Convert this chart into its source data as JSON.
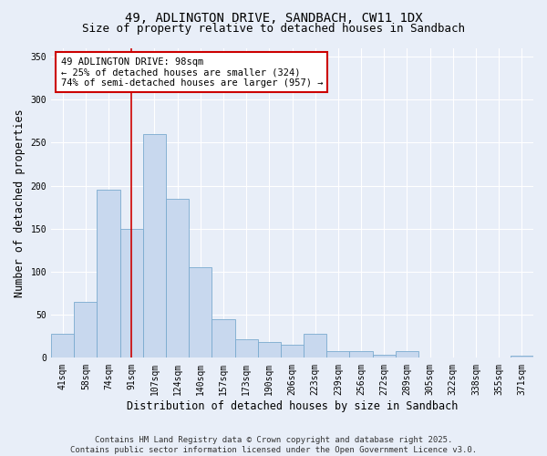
{
  "title": "49, ADLINGTON DRIVE, SANDBACH, CW11 1DX",
  "subtitle": "Size of property relative to detached houses in Sandbach",
  "xlabel": "Distribution of detached houses by size in Sandbach",
  "ylabel": "Number of detached properties",
  "categories": [
    "41sqm",
    "58sqm",
    "74sqm",
    "91sqm",
    "107sqm",
    "124sqm",
    "140sqm",
    "157sqm",
    "173sqm",
    "190sqm",
    "206sqm",
    "223sqm",
    "239sqm",
    "256sqm",
    "272sqm",
    "289sqm",
    "305sqm",
    "322sqm",
    "338sqm",
    "355sqm",
    "371sqm"
  ],
  "values": [
    28,
    65,
    195,
    150,
    260,
    185,
    105,
    45,
    22,
    18,
    15,
    28,
    8,
    8,
    4,
    8,
    0,
    0,
    0,
    0,
    3
  ],
  "bar_color": "#c8d8ee",
  "bar_edge_color": "#7aaacf",
  "vline_x_index": 3,
  "vline_color": "#cc0000",
  "annotation_text": "49 ADLINGTON DRIVE: 98sqm\n← 25% of detached houses are smaller (324)\n74% of semi-detached houses are larger (957) →",
  "annotation_box_color": "#ffffff",
  "annotation_box_edge": "#cc0000",
  "ylim": [
    0,
    360
  ],
  "yticks": [
    0,
    50,
    100,
    150,
    200,
    250,
    300,
    350
  ],
  "footer": "Contains HM Land Registry data © Crown copyright and database right 2025.\nContains public sector information licensed under the Open Government Licence v3.0.",
  "background_color": "#e8eef8",
  "grid_color": "#ffffff",
  "title_fontsize": 10,
  "subtitle_fontsize": 9,
  "axis_label_fontsize": 8.5,
  "tick_fontsize": 7,
  "annotation_fontsize": 7.5,
  "footer_fontsize": 6.5
}
